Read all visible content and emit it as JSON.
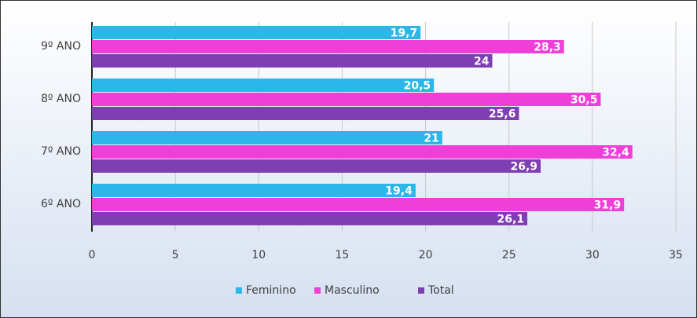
{
  "chart_data": {
    "type": "bar",
    "orientation": "horizontal",
    "categories": [
      "9º ANO",
      "8º ANO",
      "7º ANO",
      "6º ANO"
    ],
    "series": [
      {
        "name": "Feminino",
        "color": "#2bb7e8",
        "values": [
          19.7,
          20.5,
          21,
          19.4
        ],
        "value_labels": [
          "19,7",
          "20,5",
          "21",
          "19,4"
        ]
      },
      {
        "name": "Masculino",
        "color": "#ee40d8",
        "values": [
          28.3,
          30.5,
          32.4,
          31.9
        ],
        "value_labels": [
          "28,3",
          "30,5",
          "32,4",
          "31,9"
        ]
      },
      {
        "name": "Total",
        "color": "#7e3fb2",
        "values": [
          24,
          25.6,
          26.9,
          26.1
        ],
        "value_labels": [
          "24",
          "25,6",
          "26,9",
          "26,1"
        ]
      }
    ],
    "xlim": [
      0,
      35
    ],
    "xticks": [
      0,
      5,
      10,
      15,
      20,
      25,
      30,
      35
    ],
    "grid": true,
    "legend": "bottom"
  }
}
